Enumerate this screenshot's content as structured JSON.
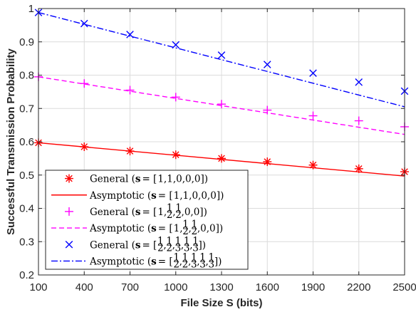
{
  "chart_data": {
    "type": "line",
    "xlabel": "File Size S (bits)",
    "ylabel": "Successful Transmission Probability",
    "xlim": [
      100,
      2500
    ],
    "ylim": [
      0.2,
      1.0
    ],
    "x_ticks": [
      "100",
      "400",
      "700",
      "1000",
      "1300",
      "1600",
      "1900",
      "2200",
      "2500"
    ],
    "y_ticks": [
      "0.2",
      "0.3",
      "0.4",
      "0.5",
      "0.6",
      "0.7",
      "0.8",
      "0.9",
      "1"
    ],
    "grid": true,
    "legend_position": "bottom-left",
    "series": [
      {
        "name": "General (s = [1, 1, 0, 0, 0])",
        "style": "markers",
        "marker": "asterisk",
        "color": "#ff0000",
        "x": [
          100,
          400,
          700,
          1000,
          1300,
          1600,
          1900,
          2200,
          2500
        ],
        "values": [
          0.597,
          0.585,
          0.572,
          0.561,
          0.55,
          0.54,
          0.53,
          0.519,
          0.51
        ]
      },
      {
        "name": "Asymptotic (s = [1, 1, 0, 0, 0])",
        "style": "solid",
        "color": "#ff0000",
        "x": [
          100,
          2500
        ],
        "values": [
          0.597,
          0.497
        ]
      },
      {
        "name": "General (s = [1, 1/2, 1/2, 0, 0])",
        "style": "markers",
        "marker": "plus",
        "color": "#ff00ff",
        "x": [
          100,
          400,
          700,
          1000,
          1300,
          1600,
          1900,
          2200,
          2500
        ],
        "values": [
          0.795,
          0.775,
          0.755,
          0.734,
          0.713,
          0.695,
          0.678,
          0.663,
          0.645
        ]
      },
      {
        "name": "Asymptotic (s = [1, 1/2, 1/2, 0, 0])",
        "style": "dashed",
        "color": "#ff00ff",
        "x": [
          100,
          2500
        ],
        "values": [
          0.795,
          0.622
        ]
      },
      {
        "name": "General (s = [1/2, 1/2, 1/3, 1/3, 1/3])",
        "style": "markers",
        "marker": "x",
        "color": "#0000ff",
        "x": [
          100,
          400,
          700,
          1000,
          1300,
          1600,
          1900,
          2200,
          2500
        ],
        "values": [
          0.988,
          0.955,
          0.922,
          0.891,
          0.86,
          0.832,
          0.806,
          0.779,
          0.752
        ]
      },
      {
        "name": "Asymptotic (s = [1/2, 1/2, 1/3, 1/3, 1/3])",
        "style": "dashdot",
        "color": "#0000ff",
        "x": [
          100,
          2500
        ],
        "values": [
          0.988,
          0.705
        ]
      }
    ],
    "legend": {
      "entries": [
        {
          "prefix": "General (",
          "bold": "s",
          "vec": [
            "1",
            "1",
            "0",
            "0",
            "0"
          ],
          "suffix": ")"
        },
        {
          "prefix": "Asymptotic (",
          "bold": "s",
          "vec": [
            "1",
            "1",
            "0",
            "0",
            "0"
          ],
          "suffix": ")"
        },
        {
          "prefix": "General (",
          "bold": "s",
          "vec": [
            "1",
            "1/2",
            "1/2",
            "0",
            "0"
          ],
          "suffix": ")"
        },
        {
          "prefix": "Asymptotic (",
          "bold": "s",
          "vec": [
            "1",
            "1/2",
            "1/2",
            "0",
            "0"
          ],
          "suffix": ")"
        },
        {
          "prefix": "General (",
          "bold": "s",
          "vec": [
            "1/2",
            "1/2",
            "1/3",
            "1/3",
            "1/3"
          ],
          "suffix": ")"
        },
        {
          "prefix": "Asymptotic (",
          "bold": "s",
          "vec": [
            "1/2",
            "1/2",
            "1/3",
            "1/3",
            "1/3"
          ],
          "suffix": ")"
        }
      ]
    }
  }
}
